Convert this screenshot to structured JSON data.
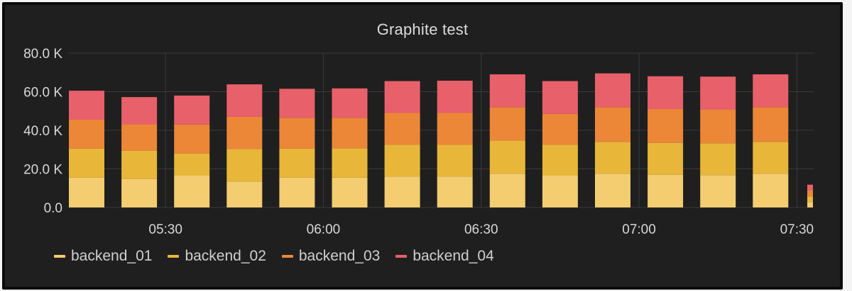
{
  "panel": {
    "title": "Graphite test"
  },
  "colors": {
    "background": "#1f1f1f",
    "grid": "#3a3a3a",
    "backend_01": "#f3cd70",
    "backend_02": "#e8b73a",
    "backend_03": "#ec8738",
    "backend_04": "#e8606a"
  },
  "chart_data": {
    "type": "bar",
    "stacked": true,
    "title": "Graphite test",
    "xlabel": "",
    "ylabel": "",
    "ylim": [
      0,
      80000
    ],
    "y_ticks": [
      {
        "value": 0,
        "label": "0.0"
      },
      {
        "value": 20000,
        "label": "20.0 K"
      },
      {
        "value": 40000,
        "label": "40.0 K"
      },
      {
        "value": 60000,
        "label": "60.0 K"
      },
      {
        "value": 80000,
        "label": "80.0 K"
      }
    ],
    "x_ticks": [
      "05:30",
      "06:00",
      "06:30",
      "07:00",
      "07:30"
    ],
    "x_tick_positions": [
      2.0,
      5.0,
      8.0,
      11.0,
      14.0
    ],
    "grid": true,
    "legend_position": "bottom",
    "bar_count": 14,
    "series": [
      {
        "name": "backend_01",
        "values": [
          15500,
          14800,
          16500,
          13500,
          15500,
          15500,
          16000,
          16000,
          17500,
          16500,
          17500,
          17000,
          16800,
          17500
        ]
      },
      {
        "name": "backend_02",
        "values": [
          15000,
          14600,
          11500,
          16800,
          15000,
          15200,
          16500,
          16500,
          17000,
          16000,
          16500,
          16500,
          16500,
          16500
        ]
      },
      {
        "name": "backend_03",
        "values": [
          15000,
          13700,
          15000,
          16700,
          16000,
          15800,
          16500,
          16500,
          17500,
          16000,
          18000,
          17500,
          17500,
          18000
        ]
      },
      {
        "name": "backend_04",
        "values": [
          15000,
          14100,
          15000,
          16800,
          15000,
          15200,
          16500,
          16700,
          17000,
          17000,
          17500,
          17000,
          17000,
          17000
        ]
      }
    ],
    "partial_bar": {
      "values": [
        2800,
        3000,
        3000,
        3000
      ]
    }
  }
}
